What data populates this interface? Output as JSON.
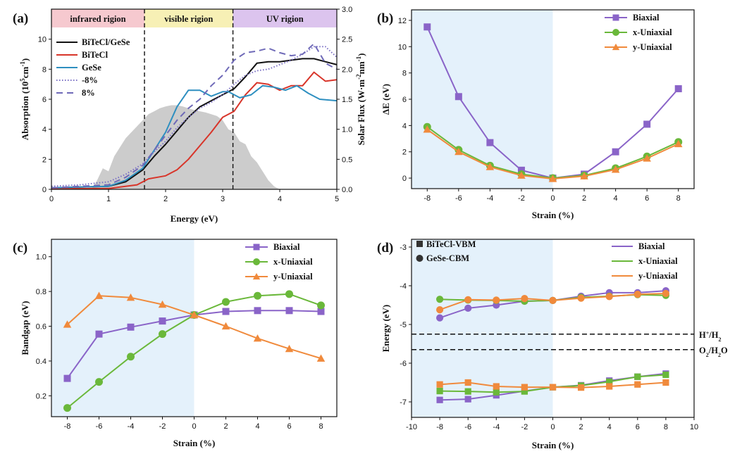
{
  "figure": {
    "panels": [
      "(a)",
      "(b)",
      "(c)",
      "(d)"
    ]
  },
  "colors": {
    "biaxial": "#8a64c8",
    "x_uniaxial": "#6ab83a",
    "y_uniaxial": "#f08a3c",
    "bitecl_gese": "#111111",
    "bitecl": "#d8352a",
    "gese": "#2e8fc0",
    "minus8": "#7a6fc4",
    "plus8": "#6f6ab8",
    "shade": "#e4f1fb",
    "solar": "#cccccc",
    "infrared_region": "#f6c9cf",
    "visible_region": "#f7f0b5",
    "uv_region": "#dcc4ee"
  },
  "chart_data": [
    {
      "panel": "(a)",
      "type": "line",
      "title": "",
      "xlabel": "Energy (eV)",
      "ylabel": "Absorption (10^5 cm^-1)",
      "ylabel_parts": {
        "pre": "Absorption (10",
        "sup1": "5",
        "mid": "cm",
        "sup2": "-1",
        "post": ")"
      },
      "y2label": "Solar Flux (W·m-2nm-1)",
      "y2label_parts": {
        "pre": "Solar Flux (W·m",
        "sup1": "-2",
        "mid": "nm",
        "sup2": "-1",
        "post": ")"
      },
      "xlim": [
        0,
        5
      ],
      "ylim": [
        0,
        12
      ],
      "y2lim": [
        0,
        3.0
      ],
      "xticks": [
        0,
        1,
        2,
        3,
        4,
        5
      ],
      "yticks": [
        0,
        2,
        4,
        6,
        8,
        10
      ],
      "y2ticks": [
        0.0,
        0.5,
        1.0,
        1.5,
        2.0,
        2.5,
        3.0
      ],
      "y2ticklabels": [
        "0.0",
        "0.5",
        "1.0",
        "1.5",
        "2.0",
        "2.5",
        "3.0"
      ],
      "regions": [
        {
          "label": "infrared rigion",
          "from": 0,
          "to": 1.63
        },
        {
          "label": "visible rigion",
          "from": 1.63,
          "to": 3.18
        },
        {
          "label": "UV rigion",
          "from": 3.18,
          "to": 5
        }
      ],
      "boundaries": [
        1.63,
        3.18
      ],
      "solar_flux": {
        "x": [
          0.7,
          0.8,
          0.9,
          1.0,
          1.1,
          1.2,
          1.3,
          1.4,
          1.5,
          1.6,
          1.7,
          1.8,
          1.9,
          2.0,
          2.1,
          2.2,
          2.3,
          2.4,
          2.5,
          2.6,
          2.7,
          2.8,
          2.9,
          3.0,
          3.1,
          3.2,
          3.3,
          3.4,
          3.5,
          3.6,
          3.7,
          3.8,
          3.9,
          4.0
        ],
        "y": [
          0.0,
          0.15,
          0.35,
          0.3,
          0.55,
          0.7,
          0.85,
          0.95,
          1.05,
          1.15,
          1.25,
          1.3,
          1.35,
          1.38,
          1.4,
          1.4,
          1.38,
          1.35,
          1.32,
          1.3,
          1.28,
          1.25,
          1.22,
          1.15,
          1.0,
          0.95,
          0.8,
          0.75,
          0.55,
          0.45,
          0.3,
          0.15,
          0.05,
          0.0
        ]
      },
      "series": [
        {
          "name": "BiTeCl/GeSe",
          "color_key": "bitecl_gese",
          "style": "solid",
          "x": [
            0,
            0.5,
            1.0,
            1.3,
            1.6,
            1.8,
            2.0,
            2.2,
            2.4,
            2.6,
            2.8,
            3.0,
            3.2,
            3.4,
            3.6,
            3.8,
            4.0,
            4.2,
            4.4,
            4.6,
            4.8,
            5.0
          ],
          "y": [
            0.1,
            0.15,
            0.2,
            0.5,
            1.3,
            2.2,
            3.0,
            3.9,
            4.8,
            5.5,
            5.9,
            6.3,
            6.7,
            7.5,
            8.4,
            8.5,
            8.5,
            8.6,
            8.7,
            8.7,
            8.5,
            8.3
          ]
        },
        {
          "name": "BiTeCl",
          "color_key": "bitecl",
          "style": "solid",
          "x": [
            0,
            0.5,
            1.0,
            1.5,
            1.7,
            2.0,
            2.2,
            2.4,
            2.6,
            2.8,
            3.0,
            3.2,
            3.4,
            3.6,
            3.8,
            4.0,
            4.2,
            4.4,
            4.6,
            4.8,
            5.0
          ],
          "y": [
            0.05,
            0.05,
            0.05,
            0.3,
            0.7,
            0.9,
            1.3,
            2.0,
            2.9,
            3.8,
            4.8,
            5.2,
            6.3,
            7.1,
            7.0,
            6.6,
            6.9,
            6.9,
            7.8,
            7.2,
            7.3
          ]
        },
        {
          "name": "GeSe",
          "color_key": "gese",
          "style": "solid",
          "x": [
            0,
            0.5,
            1.0,
            1.3,
            1.6,
            1.8,
            2.0,
            2.2,
            2.4,
            2.6,
            2.8,
            3.0,
            3.1,
            3.3,
            3.5,
            3.7,
            3.9,
            4.1,
            4.3,
            4.5,
            4.7,
            5.0
          ],
          "y": [
            0.1,
            0.15,
            0.2,
            0.6,
            1.4,
            2.6,
            3.8,
            5.5,
            6.6,
            6.6,
            6.2,
            6.5,
            6.5,
            6.1,
            6.3,
            6.9,
            6.8,
            6.6,
            6.9,
            6.4,
            6.0,
            5.9
          ]
        },
        {
          "name": "-8%",
          "color_key": "minus8",
          "style": "dotted",
          "x": [
            0,
            0.5,
            1.0,
            1.3,
            1.6,
            1.8,
            2.0,
            2.2,
            2.4,
            2.6,
            2.8,
            3.0,
            3.2,
            3.4,
            3.6,
            3.8,
            4.0,
            4.2,
            4.4,
            4.6,
            4.8,
            5.0
          ],
          "y": [
            0.2,
            0.3,
            0.5,
            1.0,
            1.7,
            2.5,
            3.2,
            4.1,
            4.8,
            5.4,
            5.8,
            6.3,
            7.0,
            7.6,
            7.9,
            8.0,
            8.3,
            8.6,
            9.0,
            9.5,
            9.5,
            8.8
          ]
        },
        {
          "name": "8%",
          "color_key": "plus8",
          "style": "dashed",
          "x": [
            0,
            0.5,
            1.0,
            1.3,
            1.6,
            1.8,
            2.0,
            2.2,
            2.4,
            2.6,
            2.8,
            3.0,
            3.2,
            3.4,
            3.6,
            3.8,
            4.0,
            4.2,
            4.4,
            4.6,
            4.8,
            5.0
          ],
          "y": [
            0.1,
            0.2,
            0.3,
            0.8,
            1.6,
            2.6,
            3.6,
            4.6,
            5.4,
            6.0,
            6.9,
            7.6,
            8.6,
            9.1,
            9.2,
            9.4,
            9.1,
            8.9,
            9.0,
            9.7,
            8.4,
            8.0
          ]
        }
      ],
      "legend": [
        "BiTeCl/GeSe",
        "BiTeCl",
        "GeSe",
        "-8%",
        "8%"
      ]
    },
    {
      "panel": "(b)",
      "type": "line",
      "title": "",
      "xlabel": "Strain (%)",
      "ylabel": "ΔE (eV)",
      "xlim": [
        -9,
        9
      ],
      "ylim": [
        -0.8,
        12.8
      ],
      "xticks": [
        -8,
        -6,
        -4,
        -2,
        0,
        2,
        4,
        6,
        8
      ],
      "yticks": [
        0,
        2,
        4,
        6,
        8,
        10,
        12
      ],
      "categories": [
        -8,
        -6,
        -4,
        -2,
        0,
        2,
        4,
        6,
        8
      ],
      "series": [
        {
          "name": "Biaxial",
          "color_key": "biaxial",
          "marker": "square",
          "values": [
            11.5,
            6.2,
            2.7,
            0.6,
            0.0,
            0.3,
            2.0,
            4.1,
            6.8
          ]
        },
        {
          "name": "x-Uniaxial",
          "color_key": "x_uniaxial",
          "marker": "circle",
          "values": [
            3.9,
            2.15,
            0.95,
            0.3,
            0.0,
            0.2,
            0.75,
            1.65,
            2.75
          ]
        },
        {
          "name": "y-Uniaxial",
          "color_key": "y_uniaxial",
          "marker": "triangle",
          "values": [
            3.7,
            2.0,
            0.85,
            0.2,
            -0.05,
            0.15,
            0.65,
            1.5,
            2.6
          ]
        }
      ],
      "legend": [
        "Biaxial",
        "x-Uniaxial",
        "y-Uniaxial"
      ],
      "shade": {
        "from": -9,
        "to": 0
      }
    },
    {
      "panel": "(c)",
      "type": "line",
      "title": "",
      "xlabel": "Strain (%)",
      "ylabel": "Bandgap (eV)",
      "xlim": [
        -9,
        9
      ],
      "ylim": [
        0.08,
        1.1
      ],
      "xticks": [
        -8,
        -6,
        -4,
        -2,
        0,
        2,
        4,
        6,
        8
      ],
      "yticks": [
        0.2,
        0.4,
        0.6,
        0.8,
        1.0
      ],
      "yticklabels": [
        "0.2",
        "0.4",
        "0.6",
        "0.8",
        "1.0"
      ],
      "categories": [
        -8,
        -6,
        -4,
        -2,
        0,
        2,
        4,
        6,
        8
      ],
      "series": [
        {
          "name": "Biaxial",
          "color_key": "biaxial",
          "marker": "square",
          "values": [
            0.3,
            0.555,
            0.595,
            0.63,
            0.665,
            0.685,
            0.69,
            0.69,
            0.685
          ]
        },
        {
          "name": "x-Uniaxial",
          "color_key": "x_uniaxial",
          "marker": "circle",
          "values": [
            0.13,
            0.28,
            0.425,
            0.555,
            0.665,
            0.74,
            0.775,
            0.785,
            0.72
          ]
        },
        {
          "name": "y-Uniaxial",
          "color_key": "y_uniaxial",
          "marker": "triangle",
          "values": [
            0.61,
            0.775,
            0.765,
            0.725,
            0.665,
            0.6,
            0.53,
            0.47,
            0.415
          ]
        }
      ],
      "legend": [
        "Biaxial",
        "x-Uniaxial",
        "y-Uniaxial"
      ],
      "shade": {
        "from": -9,
        "to": 0
      }
    },
    {
      "panel": "(d)",
      "type": "line",
      "title": "",
      "xlabel": "Strain (%)",
      "ylabel": "Energy (eV)",
      "xlim": [
        -10,
        10
      ],
      "ylim": [
        -7.4,
        -2.8
      ],
      "xticks": [
        -10,
        -8,
        -6,
        -4,
        -2,
        0,
        2,
        4,
        6,
        8,
        10
      ],
      "yticks": [
        -7,
        -6,
        -5,
        -4,
        -3
      ],
      "categories": [
        -8,
        -6,
        -4,
        -2,
        0,
        2,
        4,
        6,
        8
      ],
      "marker_legend": [
        "BiTeCl-VBM",
        "GeSe-CBM"
      ],
      "reference_lines": [
        {
          "label": "H⁺/H₂",
          "label_parts": {
            "a": "H",
            "sup": "+",
            "b": "/H",
            "sub": "2"
          },
          "y": -5.25
        },
        {
          "label": "O₂/H₂O",
          "label_parts": {
            "a": "O",
            "sub": "2",
            "b": "/H",
            "sub2": "2",
            "c": "O"
          },
          "y": -5.65
        }
      ],
      "series": [
        {
          "name": "Biaxial",
          "color_key": "biaxial",
          "group": "CBM",
          "values": [
            -4.83,
            -4.58,
            -4.5,
            -4.4,
            -4.38,
            -4.27,
            -4.18,
            -4.18,
            -4.13
          ]
        },
        {
          "name": "x-Uniaxial",
          "color_key": "x_uniaxial",
          "group": "CBM",
          "values": [
            -4.35,
            -4.37,
            -4.38,
            -4.4,
            -4.38,
            -4.3,
            -4.27,
            -4.23,
            -4.25
          ]
        },
        {
          "name": "y-Uniaxial",
          "color_key": "y_uniaxial",
          "group": "CBM",
          "values": [
            -4.62,
            -4.36,
            -4.37,
            -4.33,
            -4.38,
            -4.32,
            -4.28,
            -4.22,
            -4.2
          ]
        },
        {
          "name": "Biaxial",
          "color_key": "biaxial",
          "group": "VBM",
          "values": [
            -6.95,
            -6.93,
            -6.83,
            -6.72,
            -6.62,
            -6.57,
            -6.45,
            -6.35,
            -6.27
          ]
        },
        {
          "name": "x-Uniaxial",
          "color_key": "x_uniaxial",
          "group": "VBM",
          "values": [
            -6.72,
            -6.73,
            -6.75,
            -6.73,
            -6.62,
            -6.58,
            -6.48,
            -6.35,
            -6.3
          ]
        },
        {
          "name": "y-Uniaxial",
          "color_key": "y_uniaxial",
          "group": "VBM",
          "values": [
            -6.55,
            -6.5,
            -6.6,
            -6.62,
            -6.62,
            -6.63,
            -6.6,
            -6.55,
            -6.5
          ]
        }
      ],
      "legend": [
        "Biaxial",
        "x-Uniaxial",
        "y-Uniaxial"
      ],
      "shade": {
        "from": -10,
        "to": 0
      }
    }
  ]
}
